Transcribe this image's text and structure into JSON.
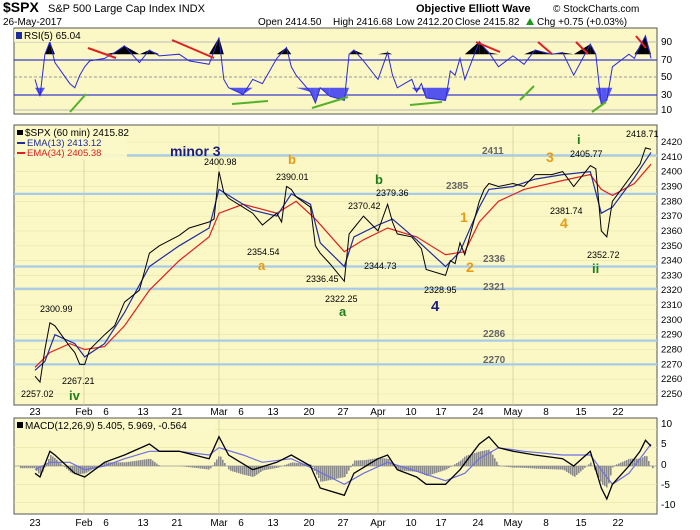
{
  "header": {
    "symbol": "$SPX",
    "title": "S&P 500 Large Cap Index INDX",
    "date": "26-May-2017",
    "open": "Open 2414.50",
    "high": "High 2416.68",
    "low": "Low 2412.20",
    "close": "Close 2415.82",
    "change": "Chg +0.75 (+0.03%)",
    "up_icon": "triangle-up-icon",
    "source": "Objective Elliott Wave",
    "watermark": "© StockCharts.com"
  },
  "colors": {
    "panel_bg": "#fbf8c6",
    "price": "#000000",
    "ema13": "#1f2c9c",
    "ema34": "#e02020",
    "rsi": "#2a2adb",
    "support_line": "#a7cbe9",
    "trend_red": "#e02020",
    "trend_green": "#55b02a",
    "wave_orange": "#e89a10",
    "wave_green": "#1f7f1f",
    "wave_navy": "#1c1c7c"
  },
  "rsi_panel": {
    "label": "RSI(5) 65.04",
    "levels": [
      "70",
      "50",
      "30",
      "10",
      "90"
    ]
  },
  "price_panel": {
    "legend_price": "$SPX (60 min) 2415.82",
    "legend_ema13": "EMA(13) 2413.12",
    "legend_ema34": "EMA(34) 2405.38"
  },
  "macd_panel": {
    "label": "MACD(12,26,9) 5.405, 5.969, -0.564",
    "ticks": [
      "10",
      "5",
      "0",
      "-5",
      "-10"
    ]
  },
  "x_ticks": [
    "23",
    "Feb",
    "6",
    "13",
    "21",
    "Mar",
    "6",
    "13",
    "20",
    "27",
    "Apr",
    "10",
    "17",
    "24",
    "May",
    "8",
    "15",
    "22"
  ],
  "annotations": {
    "levels": [
      "2411",
      "2385",
      "2336",
      "2321",
      "2286",
      "2270"
    ],
    "price_labels": [
      "2418.71",
      "2405.77",
      "2400.98",
      "2390.01",
      "2379.36",
      "2370.42",
      "2381.74",
      "2354.54",
      "2344.73",
      "2336.45",
      "2322.25",
      "2328.95",
      "2352.72",
      "2300.99",
      "2267.21",
      "2257.02"
    ],
    "waves": {
      "minor3": "minor 3",
      "b_orange": "b",
      "b_green": "b",
      "a_orange": "a",
      "a_green": "a",
      "four_navy": "4",
      "one_orange": "1",
      "two_orange": "2",
      "three_orange": "3",
      "four_orange": "4",
      "i_green": "i",
      "ii_green": "ii",
      "iv_green": "iv"
    }
  },
  "chart_data": {
    "type": "line",
    "x_axis_type": "hourly date",
    "price_y_range": [
      2250,
      2420
    ],
    "price_y_ticks": [
      2250,
      2260,
      2270,
      2280,
      2290,
      2300,
      2310,
      2320,
      2330,
      2340,
      2350,
      2360,
      2370,
      2380,
      2390,
      2400,
      2410,
      2420
    ],
    "support_lines": [
      2411,
      2385,
      2336,
      2321,
      2286,
      2270
    ],
    "price_path": [
      [
        "Jan 23",
        2262
      ],
      [
        "Jan 24",
        2258
      ],
      [
        "Jan 25",
        2280
      ],
      [
        "Jan 26",
        2298
      ],
      [
        "Jan 27",
        2296
      ],
      [
        "Jan 30",
        2282
      ],
      [
        "Jan 31",
        2278
      ],
      [
        "Feb 1",
        2270
      ],
      [
        "Feb 2",
        2270
      ],
      [
        "Feb 3",
        2280
      ],
      [
        "Feb 6",
        2290
      ],
      [
        "Feb 8",
        2296
      ],
      [
        "Feb 10",
        2312
      ],
      [
        "Feb 13",
        2320
      ],
      [
        "Feb 15",
        2345
      ],
      [
        "Feb 17",
        2350
      ],
      [
        "Feb 21",
        2357
      ],
      [
        "Feb 23",
        2362
      ],
      [
        "Feb 27",
        2366
      ],
      [
        "Feb 28",
        2368
      ],
      [
        "Mar 1",
        2400
      ],
      [
        "Mar 2",
        2386
      ],
      [
        "Mar 3",
        2382
      ],
      [
        "Mar 6",
        2376
      ],
      [
        "Mar 8",
        2372
      ],
      [
        "Mar 10",
        2364
      ],
      [
        "Mar 13",
        2372
      ],
      [
        "Mar 14",
        2366
      ],
      [
        "Mar 15",
        2390
      ],
      [
        "Mar 16",
        2388
      ],
      [
        "Mar 17",
        2383
      ],
      [
        "Mar 20",
        2376
      ],
      [
        "Mar 21",
        2350
      ],
      [
        "Mar 22",
        2345
      ],
      [
        "Mar 24",
        2338
      ],
      [
        "Mar 27",
        2326
      ],
      [
        "Mar 28",
        2358
      ],
      [
        "Mar 29",
        2362
      ],
      [
        "Mar 31",
        2370
      ],
      [
        "Apr 3",
        2360
      ],
      [
        "Apr 5",
        2378
      ],
      [
        "Apr 6",
        2366
      ],
      [
        "Apr 7",
        2358
      ],
      [
        "Apr 10",
        2356
      ],
      [
        "Apr 11",
        2352
      ],
      [
        "Apr 12",
        2348
      ],
      [
        "Apr 13",
        2334
      ],
      [
        "Apr 17",
        2330
      ],
      [
        "Apr 18",
        2340
      ],
      [
        "Apr 19",
        2338
      ],
      [
        "Apr 20",
        2352
      ],
      [
        "Apr 21",
        2344
      ],
      [
        "Apr 24",
        2380
      ],
      [
        "Apr 25",
        2388
      ],
      [
        "Apr 26",
        2392
      ],
      [
        "Apr 28",
        2390
      ],
      [
        "May 1",
        2392
      ],
      [
        "May 3",
        2390
      ],
      [
        "May 5",
        2398
      ],
      [
        "May 8",
        2398
      ],
      [
        "May 10",
        2400
      ],
      [
        "May 12",
        2390
      ],
      [
        "May 15",
        2404
      ],
      [
        "May 16",
        2402
      ],
      [
        "May 17",
        2360
      ],
      [
        "May 18",
        2356
      ],
      [
        "May 19",
        2380
      ],
      [
        "May 22",
        2395
      ],
      [
        "May 23",
        2400
      ],
      [
        "May 24",
        2405
      ],
      [
        "May 25",
        2416
      ],
      [
        "May 26",
        2415
      ]
    ],
    "ema13_path": [
      [
        "Jan 23",
        2266
      ],
      [
        "Jan 25",
        2272
      ],
      [
        "Jan 27",
        2290
      ],
      [
        "Jan 31",
        2284
      ],
      [
        "Feb 2",
        2275
      ],
      [
        "Feb 6",
        2284
      ],
      [
        "Feb 10",
        2305
      ],
      [
        "Feb 15",
        2336
      ],
      [
        "Feb 21",
        2350
      ],
      [
        "Feb 27",
        2362
      ],
      [
        "Mar 1",
        2388
      ],
      [
        "Mar 3",
        2384
      ],
      [
        "Mar 8",
        2374
      ],
      [
        "Mar 13",
        2370
      ],
      [
        "Mar 16",
        2385
      ],
      [
        "Mar 20",
        2378
      ],
      [
        "Mar 22",
        2352
      ],
      [
        "Mar 27",
        2336
      ],
      [
        "Mar 29",
        2356
      ],
      [
        "Apr 3",
        2364
      ],
      [
        "Apr 6",
        2368
      ],
      [
        "Apr 11",
        2354
      ],
      [
        "Apr 17",
        2336
      ],
      [
        "Apr 20",
        2346
      ],
      [
        "Apr 24",
        2376
      ],
      [
        "Apr 26",
        2388
      ],
      [
        "May 1",
        2390
      ],
      [
        "May 5",
        2395
      ],
      [
        "May 10",
        2398
      ],
      [
        "May 15",
        2400
      ],
      [
        "May 17",
        2372
      ],
      [
        "May 19",
        2376
      ],
      [
        "May 23",
        2396
      ],
      [
        "May 26",
        2413
      ]
    ],
    "ema34_path": [
      [
        "Jan 23",
        2268
      ],
      [
        "Jan 26",
        2278
      ],
      [
        "Jan 30",
        2284
      ],
      [
        "Feb 2",
        2280
      ],
      [
        "Feb 6",
        2282
      ],
      [
        "Feb 10",
        2296
      ],
      [
        "Feb 15",
        2320
      ],
      [
        "Feb 21",
        2340
      ],
      [
        "Feb 27",
        2356
      ],
      [
        "Mar 1",
        2372
      ],
      [
        "Mar 6",
        2378
      ],
      [
        "Mar 13",
        2372
      ],
      [
        "Mar 17",
        2380
      ],
      [
        "Mar 21",
        2368
      ],
      [
        "Mar 27",
        2346
      ],
      [
        "Mar 31",
        2354
      ],
      [
        "Apr 5",
        2362
      ],
      [
        "Apr 11",
        2356
      ],
      [
        "Apr 17",
        2344
      ],
      [
        "Apr 21",
        2346
      ],
      [
        "Apr 24",
        2366
      ],
      [
        "Apr 28",
        2380
      ],
      [
        "May 3",
        2388
      ],
      [
        "May 10",
        2394
      ],
      [
        "May 15",
        2398
      ],
      [
        "May 17",
        2388
      ],
      [
        "May 19",
        2384
      ],
      [
        "May 23",
        2392
      ],
      [
        "May 26",
        2405
      ]
    ],
    "rsi_y_range": [
      0,
      100
    ],
    "rsi_levels": [
      10,
      30,
      50,
      70,
      90
    ],
    "rsi_path": [
      [
        "Jan 23",
        40
      ],
      [
        "Jan 24",
        20
      ],
      [
        "Jan 25",
        70
      ],
      [
        "Jan 26",
        85
      ],
      [
        "Jan 27",
        60
      ],
      [
        "Jan 30",
        35
      ],
      [
        "Jan 31",
        30
      ],
      [
        "Feb 1",
        45
      ],
      [
        "Feb 2",
        55
      ],
      [
        "Feb 3",
        62
      ],
      [
        "Feb 6",
        65
      ],
      [
        "Feb 8",
        72
      ],
      [
        "Feb 10",
        80
      ],
      [
        "Feb 13",
        60
      ],
      [
        "Feb 15",
        75
      ],
      [
        "Feb 17",
        68
      ],
      [
        "Feb 21",
        70
      ],
      [
        "Feb 23",
        62
      ],
      [
        "Feb 27",
        58
      ],
      [
        "Mar 1",
        90
      ],
      [
        "Mar 2",
        40
      ],
      [
        "Mar 3",
        30
      ],
      [
        "Mar 6",
        22
      ],
      [
        "Mar 8",
        40
      ],
      [
        "Mar 10",
        35
      ],
      [
        "Mar 13",
        65
      ],
      [
        "Mar 15",
        78
      ],
      [
        "Mar 16",
        55
      ],
      [
        "Mar 17",
        45
      ],
      [
        "Mar 20",
        25
      ],
      [
        "Mar 21",
        12
      ],
      [
        "Mar 22",
        30
      ],
      [
        "Mar 24",
        20
      ],
      [
        "Mar 27",
        15
      ],
      [
        "Mar 28",
        70
      ],
      [
        "Mar 29",
        75
      ],
      [
        "Mar 31",
        62
      ],
      [
        "Apr 3",
        40
      ],
      [
        "Apr 5",
        72
      ],
      [
        "Apr 6",
        45
      ],
      [
        "Apr 7",
        30
      ],
      [
        "Apr 10",
        40
      ],
      [
        "Apr 11",
        25
      ],
      [
        "Apr 12",
        35
      ],
      [
        "Apr 13",
        18
      ],
      [
        "Apr 17",
        15
      ],
      [
        "Apr 18",
        50
      ],
      [
        "Apr 19",
        45
      ],
      [
        "Apr 20",
        65
      ],
      [
        "Apr 21",
        40
      ],
      [
        "Apr 24",
        85
      ],
      [
        "Apr 25",
        78
      ],
      [
        "Apr 26",
        72
      ],
      [
        "Apr 28",
        55
      ],
      [
        "May 1",
        68
      ],
      [
        "May 3",
        58
      ],
      [
        "May 5",
        75
      ],
      [
        "May 8",
        70
      ],
      [
        "May 10",
        72
      ],
      [
        "May 12",
        45
      ],
      [
        "May 15",
        82
      ],
      [
        "May 16",
        70
      ],
      [
        "May 17",
        10
      ],
      [
        "May 18",
        15
      ],
      [
        "May 19",
        55
      ],
      [
        "May 22",
        70
      ],
      [
        "May 23",
        65
      ],
      [
        "May 24",
        80
      ],
      [
        "May 25",
        92
      ],
      [
        "May 26",
        65
      ]
    ],
    "macd_y_range": [
      -12,
      12
    ],
    "macd_path": [
      [
        "Jan 23",
        -2
      ],
      [
        "Jan 24",
        -3
      ],
      [
        "Jan 26",
        4
      ],
      [
        "Jan 27",
        3
      ],
      [
        "Jan 31",
        -2
      ],
      [
        "Feb 2",
        -3
      ],
      [
        "Feb 6",
        1
      ],
      [
        "Feb 10",
        3
      ],
      [
        "Feb 15",
        6
      ],
      [
        "Feb 17",
        4
      ],
      [
        "Feb 21",
        4
      ],
      [
        "Feb 27",
        2
      ],
      [
        "Mar 1",
        8
      ],
      [
        "Mar 3",
        3
      ],
      [
        "Mar 8",
        -1
      ],
      [
        "Mar 13",
        1
      ],
      [
        "Mar 16",
        3
      ],
      [
        "Mar 20",
        0
      ],
      [
        "Mar 22",
        -6
      ],
      [
        "Mar 27",
        -8
      ],
      [
        "Mar 29",
        -2
      ],
      [
        "Apr 3",
        2
      ],
      [
        "Apr 5",
        3
      ],
      [
        "Apr 7",
        -1
      ],
      [
        "Apr 11",
        -3
      ],
      [
        "Apr 13",
        -5
      ],
      [
        "Apr 17",
        -5
      ],
      [
        "Apr 20",
        -1
      ],
      [
        "Apr 24",
        6
      ],
      [
        "Apr 26",
        8
      ],
      [
        "Apr 28",
        5
      ],
      [
        "May 1",
        4
      ],
      [
        "May 5",
        3
      ],
      [
        "May 10",
        2
      ],
      [
        "May 12",
        0
      ],
      [
        "May 15",
        4
      ],
      [
        "May 17",
        -6
      ],
      [
        "May 18",
        -9
      ],
      [
        "May 19",
        -5
      ],
      [
        "May 22",
        0
      ],
      [
        "May 24",
        4
      ],
      [
        "May 25",
        7
      ],
      [
        "May 26",
        5.4
      ]
    ],
    "signal_path": [
      [
        "Jan 23",
        -1
      ],
      [
        "Jan 26",
        1
      ],
      [
        "Jan 30",
        1
      ],
      [
        "Feb 2",
        -1
      ],
      [
        "Feb 6",
        0
      ],
      [
        "Feb 10",
        2
      ],
      [
        "Feb 15",
        4
      ],
      [
        "Feb 21",
        4
      ],
      [
        "Feb 27",
        3
      ],
      [
        "Mar 1",
        5
      ],
      [
        "Mar 6",
        3
      ],
      [
        "Mar 10",
        1
      ],
      [
        "Mar 16",
        2
      ],
      [
        "Mar 21",
        -1
      ],
      [
        "Mar 27",
        -5
      ],
      [
        "Mar 31",
        -2
      ],
      [
        "Apr 5",
        1
      ],
      [
        "Apr 10",
        -1
      ],
      [
        "Apr 17",
        -4
      ],
      [
        "Apr 21",
        -2
      ],
      [
        "Apr 24",
        2
      ],
      [
        "Apr 28",
        5
      ],
      [
        "May 3",
        4
      ],
      [
        "May 10",
        3
      ],
      [
        "May 15",
        3
      ],
      [
        "May 17",
        -1
      ],
      [
        "May 19",
        -5
      ],
      [
        "May 22",
        -2
      ],
      [
        "May 24",
        2
      ],
      [
        "May 26",
        6
      ]
    ]
  }
}
